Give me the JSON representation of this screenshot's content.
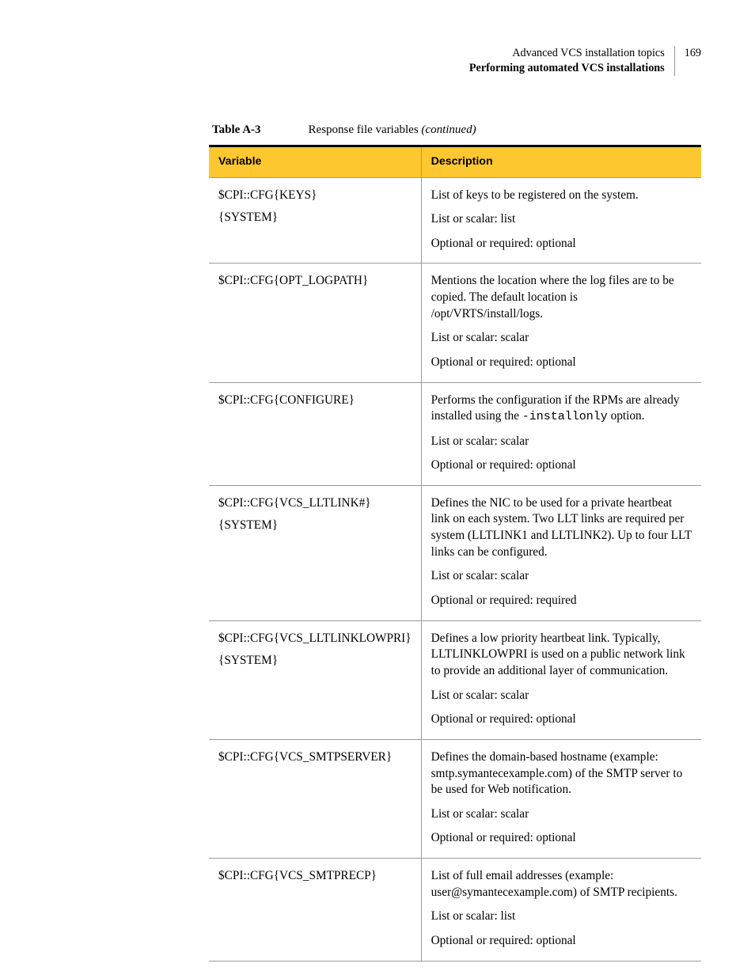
{
  "header": {
    "line1": "Advanced VCS installation topics",
    "line2": "Performing automated VCS installations",
    "page_number": "169"
  },
  "table": {
    "caption_label": "Table A-3",
    "caption_title": "Response file variables ",
    "caption_suffix_italic": "(continued)",
    "columns": [
      "Variable",
      "Description"
    ],
    "header_bg": "#fdc82f",
    "border_top_color": "#000000",
    "grid_color": "#9a9a9a",
    "rows": [
      {
        "variable_lines": [
          "$CPI::CFG{KEYS}",
          "{SYSTEM}"
        ],
        "desc": [
          "List of keys to be registered on the system.",
          "List or scalar: list",
          "Optional or required: optional"
        ]
      },
      {
        "variable_lines": [
          "$CPI::CFG{OPT_LOGPATH}"
        ],
        "desc": [
          "Mentions the location where the log files are to be copied. The default location is /opt/VRTS/install/logs.",
          "List or scalar: scalar",
          "Optional or required: optional"
        ]
      },
      {
        "variable_lines": [
          "$CPI::CFG{CONFIGURE}"
        ],
        "desc_rich": {
          "prefix": "Performs the configuration if the RPMs are already installed using the ",
          "code": "-installonly",
          "suffix": " option."
        },
        "desc_tail": [
          "List or scalar: scalar",
          "Optional or required: optional"
        ]
      },
      {
        "variable_lines": [
          "$CPI::CFG{VCS_LLTLINK#}",
          "{SYSTEM}"
        ],
        "desc": [
          "Defines the NIC to be used for a private heartbeat link on each system. Two LLT links are required per system (LLTLINK1 and LLTLINK2). Up to four LLT links can be configured.",
          "List or scalar: scalar",
          "Optional or required: required"
        ]
      },
      {
        "variable_lines": [
          "$CPI::CFG{VCS_LLTLINKLOWPRI}",
          "{SYSTEM}"
        ],
        "desc": [
          "Defines a low priority heartbeat link. Typically, LLTLINKLOWPRI is used on a public network link to provide an additional layer of communication.",
          "List or scalar: scalar",
          "Optional or required: optional"
        ]
      },
      {
        "variable_lines": [
          "$CPI::CFG{VCS_SMTPSERVER}"
        ],
        "desc": [
          "Defines the domain-based hostname (example: smtp.symantecexample.com) of the SMTP server to be used for Web notification.",
          "List or scalar: scalar",
          "Optional or required: optional"
        ]
      },
      {
        "variable_lines": [
          "$CPI::CFG{VCS_SMTPRECP}"
        ],
        "desc": [
          "List of full email addresses (example: user@symantecexample.com) of SMTP recipients.",
          "List or scalar: list",
          "Optional or required: optional"
        ]
      }
    ]
  }
}
